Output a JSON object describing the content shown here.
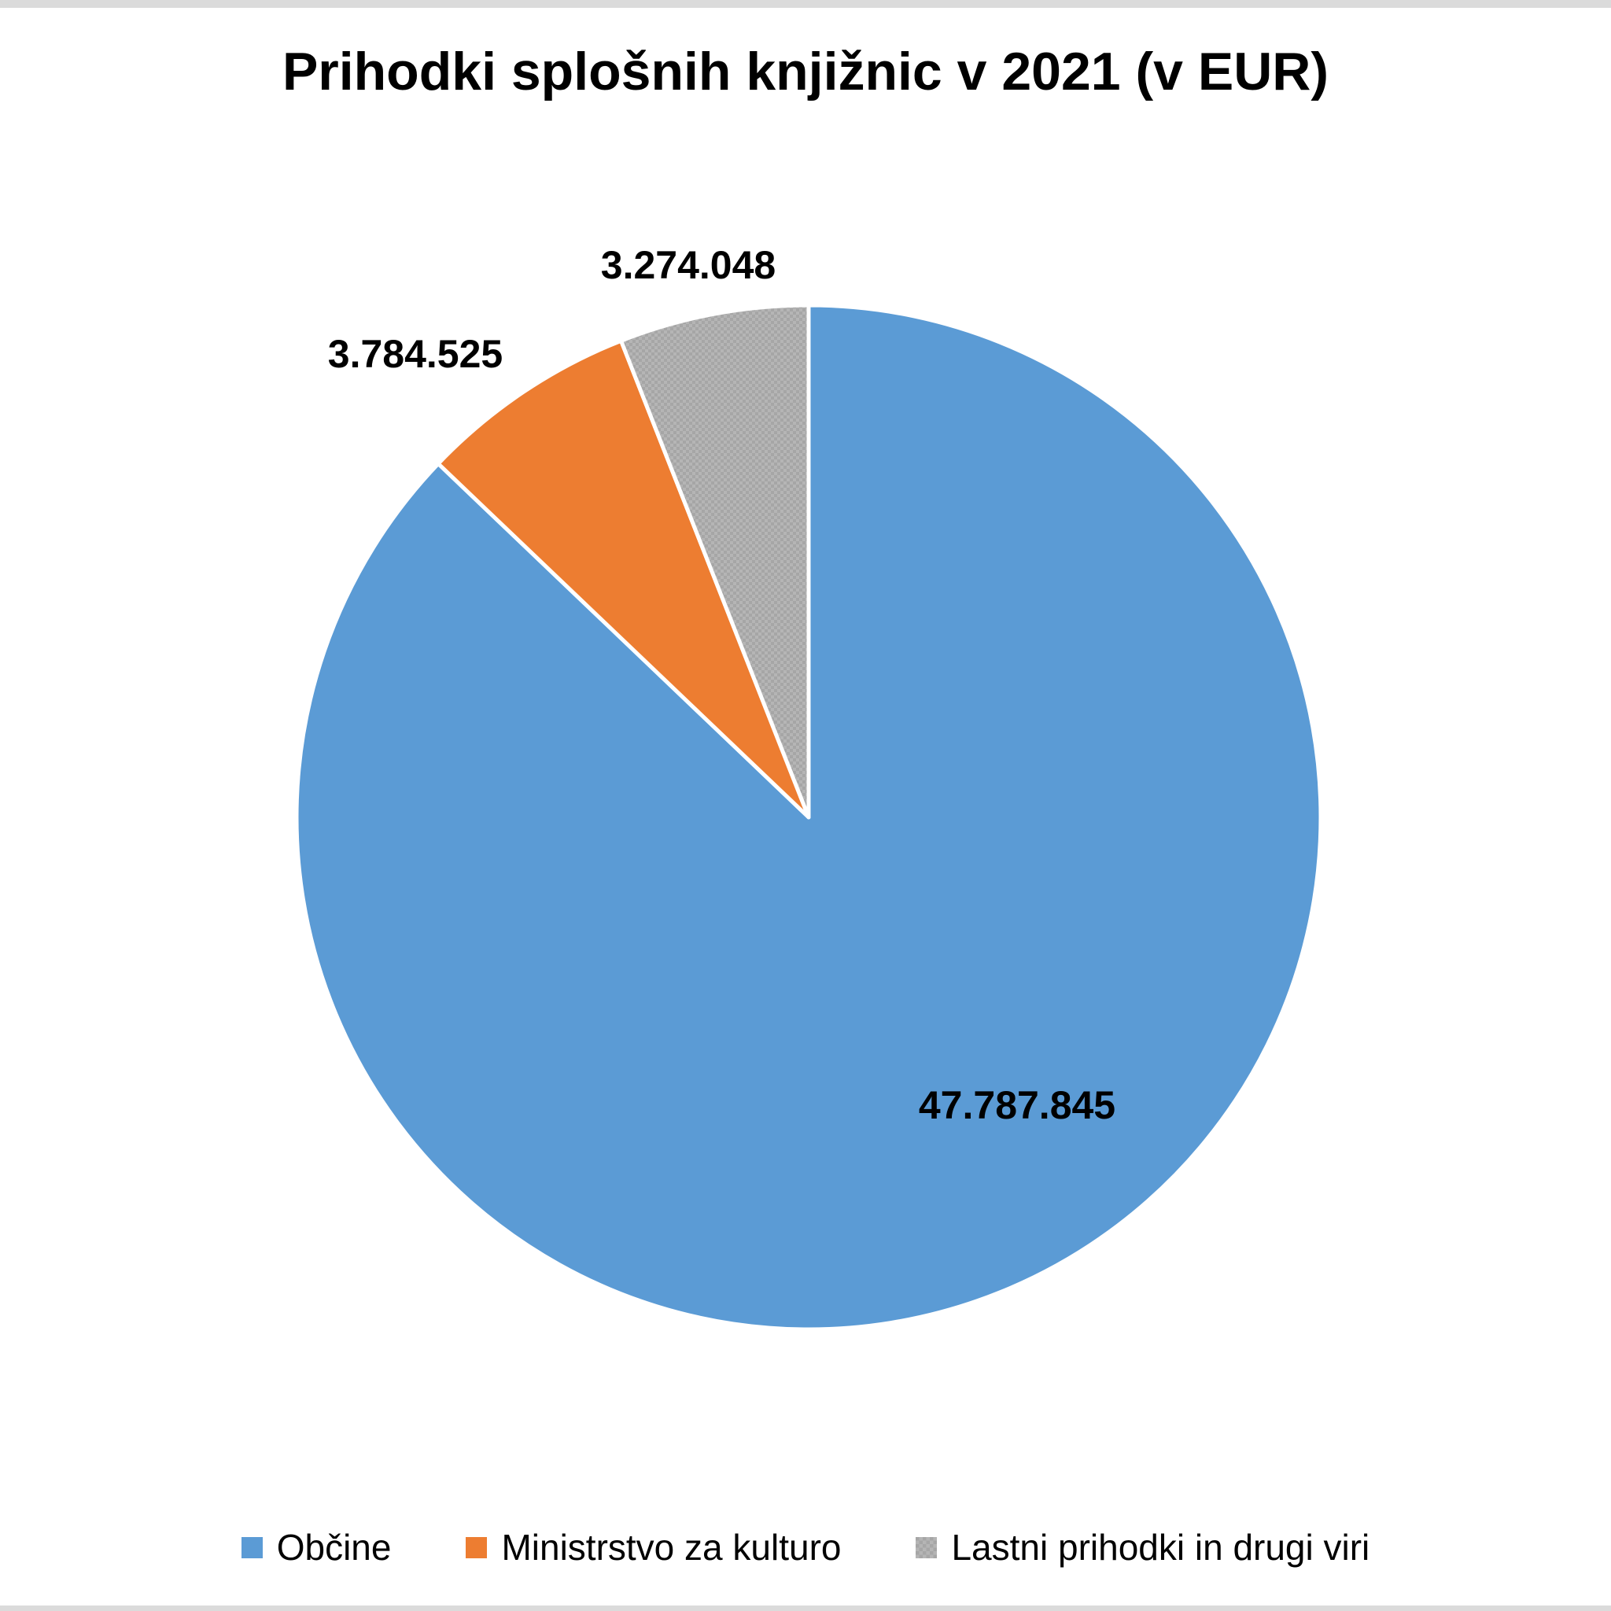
{
  "page": {
    "background": "#FFFFFF",
    "edge_strip_color": "#DBDBDB"
  },
  "chart_data": {
    "type": "pie",
    "title": "Prihodki splošnih knjižnic v 2021 (v EUR)",
    "legend_position": "bottom",
    "start_angle_deg": 0,
    "direction": "clockwise",
    "total": 54846418,
    "slices": [
      {
        "label": "Občine",
        "value": 47787845,
        "value_label": "47.787.845",
        "color": "#5B9BD5",
        "pattern": "solid"
      },
      {
        "label": "Ministrstvo za kulturo",
        "value": 3784525,
        "value_label": "3.784.525",
        "color": "#ED7D31",
        "pattern": "solid"
      },
      {
        "label": "Lastni prihodki in drugi viri",
        "value": 3274048,
        "value_label": "3.274.048",
        "color": "#A6A6A6",
        "pattern": "checker",
        "pattern_alt_color": "#B5B5B5"
      }
    ]
  }
}
